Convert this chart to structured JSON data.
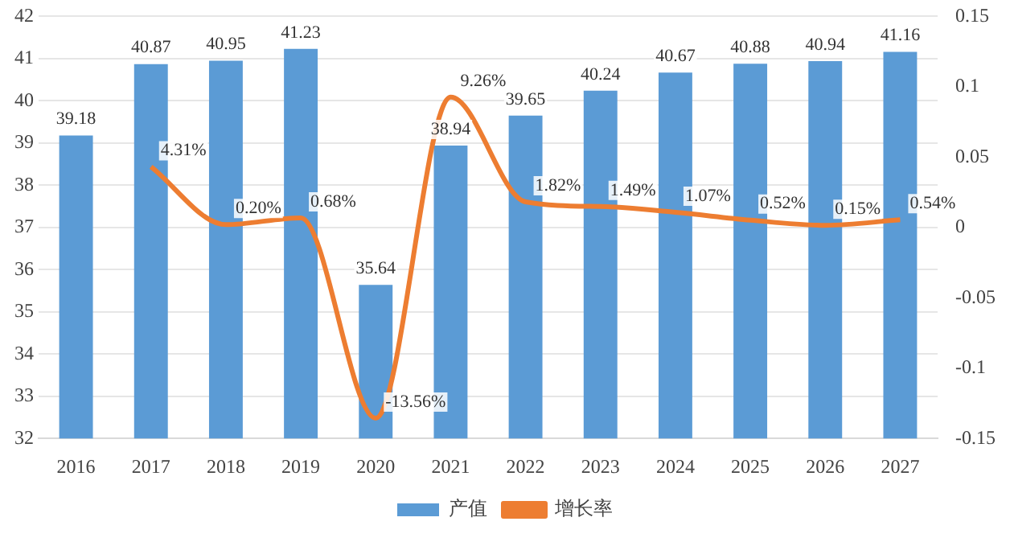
{
  "chart_data": {
    "type": "bar",
    "categories": [
      "2016",
      "2017",
      "2018",
      "2019",
      "2020",
      "2021",
      "2022",
      "2023",
      "2024",
      "2025",
      "2026",
      "2027"
    ],
    "series": [
      {
        "name": "产值",
        "color": "#5b9bd5",
        "values": [
          39.18,
          40.87,
          40.95,
          41.23,
          35.64,
          38.94,
          39.65,
          40.24,
          40.67,
          40.88,
          40.94,
          41.16
        ],
        "value_labels": [
          "39.18",
          "40.87",
          "40.95",
          "41.23",
          "35.64",
          "38.94",
          "39.65",
          "40.24",
          "40.67",
          "40.88",
          "40.94",
          "41.16"
        ]
      },
      {
        "name": "增长率",
        "type": "line",
        "axis": "y2",
        "color": "#ed7d31",
        "marker": "none",
        "values": [
          null,
          0.0431,
          0.002,
          0.0068,
          -0.1356,
          0.0926,
          0.0182,
          0.0149,
          0.0107,
          0.0052,
          0.0015,
          0.0054
        ],
        "value_labels": [
          null,
          "4.31%",
          "0.20%",
          "0.68%",
          "-13.56%",
          "9.26%",
          "1.82%",
          "1.49%",
          "1.07%",
          "0.52%",
          "0.15%",
          "0.54%"
        ]
      }
    ],
    "ylim": [
      32,
      42
    ],
    "yticks": [
      32,
      33,
      34,
      35,
      36,
      37,
      38,
      39,
      40,
      41,
      42
    ],
    "y2lim": [
      -0.15,
      0.15
    ],
    "y2ticks": [
      -0.15,
      -0.1,
      -0.05,
      0,
      0.05,
      0.1,
      0.15
    ],
    "grid": "y",
    "legend": "bottom"
  }
}
